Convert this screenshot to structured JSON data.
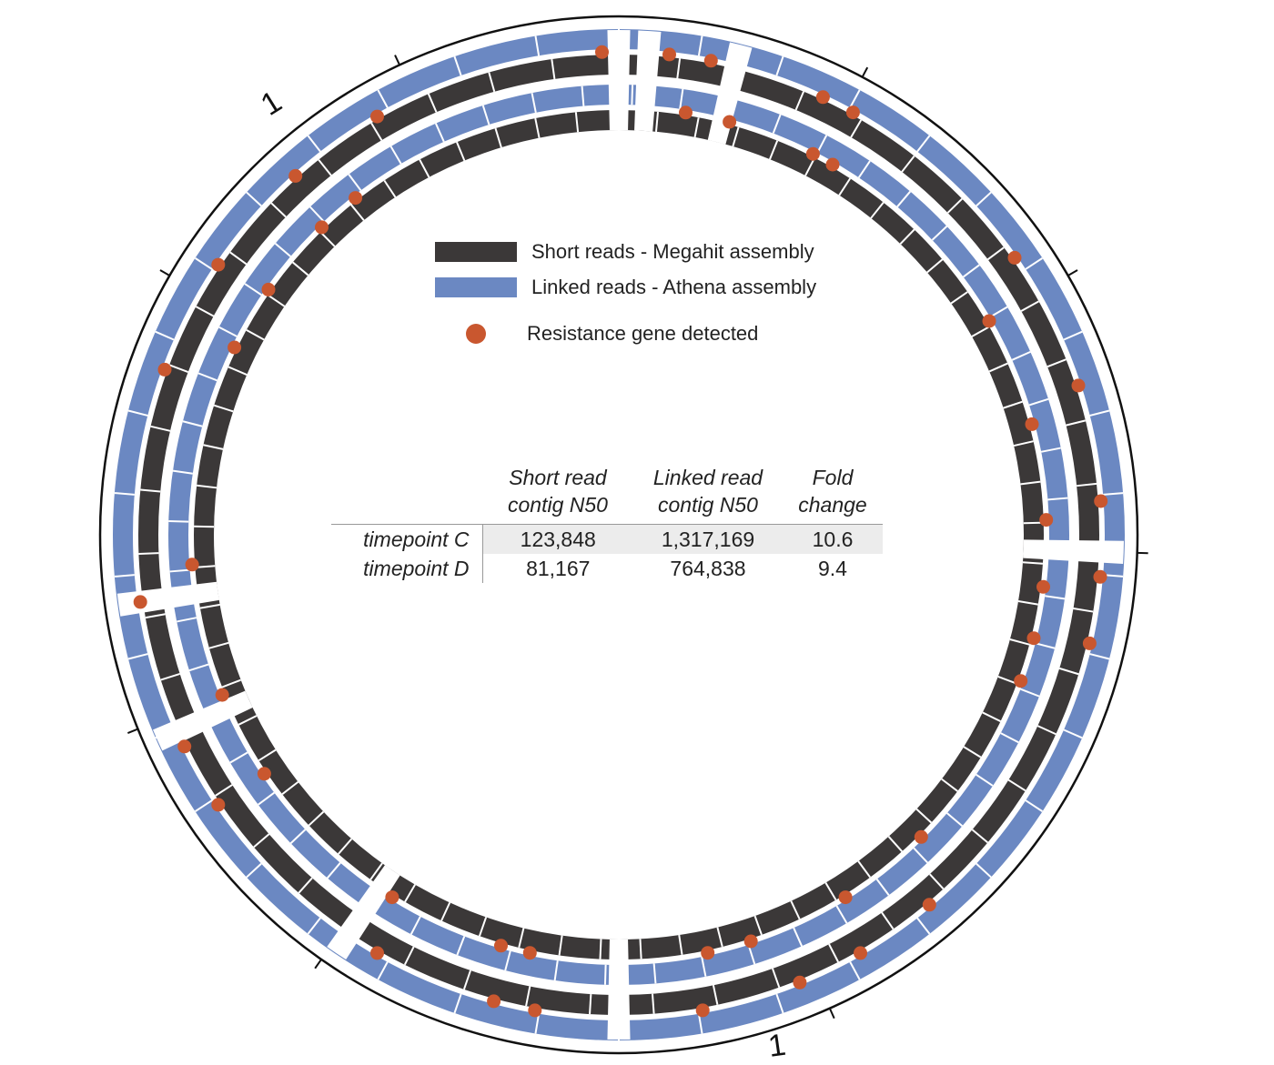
{
  "colors": {
    "short_reads": "#3b3838",
    "linked_reads": "#6b88c2",
    "resistance_gene": "#c9572f",
    "scale_ring": "#111111"
  },
  "scale_labels": [
    "1",
    "1"
  ],
  "legend": {
    "short_reads": "Short reads - Megahit assembly",
    "linked_reads": "Linked reads - Athena assembly",
    "resistance": "Resistance gene detected"
  },
  "stats_table": {
    "headers": {
      "short": [
        "Short read",
        "contig N50"
      ],
      "linked": [
        "Linked read",
        "contig N50"
      ],
      "fold": [
        "Fold",
        "change"
      ]
    },
    "rows": [
      {
        "label": "timepoint C",
        "short_n50": "123,848",
        "linked_n50": "1,317,169",
        "fold": "10.6"
      },
      {
        "label": "timepoint D",
        "short_n50": "81,167",
        "linked_n50": "764,838",
        "fold": "9.4"
      }
    ]
  }
}
